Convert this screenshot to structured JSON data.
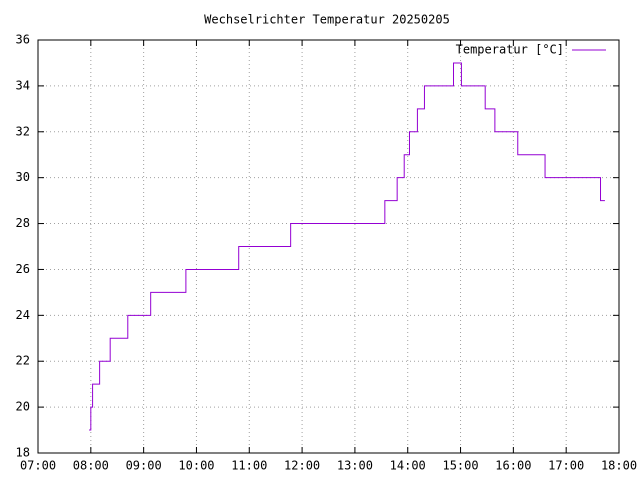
{
  "chart_data": {
    "type": "step",
    "title": "Wechselrichter Temperatur 20250205",
    "x": [
      "07:58",
      "08:00",
      "08:02",
      "08:10",
      "08:22",
      "08:42",
      "09:08",
      "09:48",
      "10:48",
      "11:47",
      "13:34",
      "13:48",
      "13:56",
      "14:02",
      "14:11",
      "14:19",
      "14:52",
      "15:01",
      "15:28",
      "15:39",
      "16:05",
      "16:36",
      "17:39",
      "17:44"
    ],
    "series": [
      {
        "name": "Temperatur [°C]",
        "color": "#9400d3",
        "values": [
          19,
          20,
          21,
          22,
          23,
          24,
          25,
          26,
          27,
          28,
          29,
          30,
          31,
          32,
          33,
          34,
          35,
          34,
          33,
          32,
          31,
          30,
          29,
          29
        ]
      }
    ],
    "xlim": [
      "07:00",
      "18:00"
    ],
    "xticks": [
      "07:00",
      "08:00",
      "09:00",
      "10:00",
      "11:00",
      "12:00",
      "13:00",
      "14:00",
      "15:00",
      "16:00",
      "17:00",
      "18:00"
    ],
    "ylim": [
      18,
      36
    ],
    "yticks": [
      18,
      20,
      22,
      24,
      26,
      28,
      30,
      32,
      34,
      36
    ],
    "grid": true,
    "legend": "top-right"
  }
}
